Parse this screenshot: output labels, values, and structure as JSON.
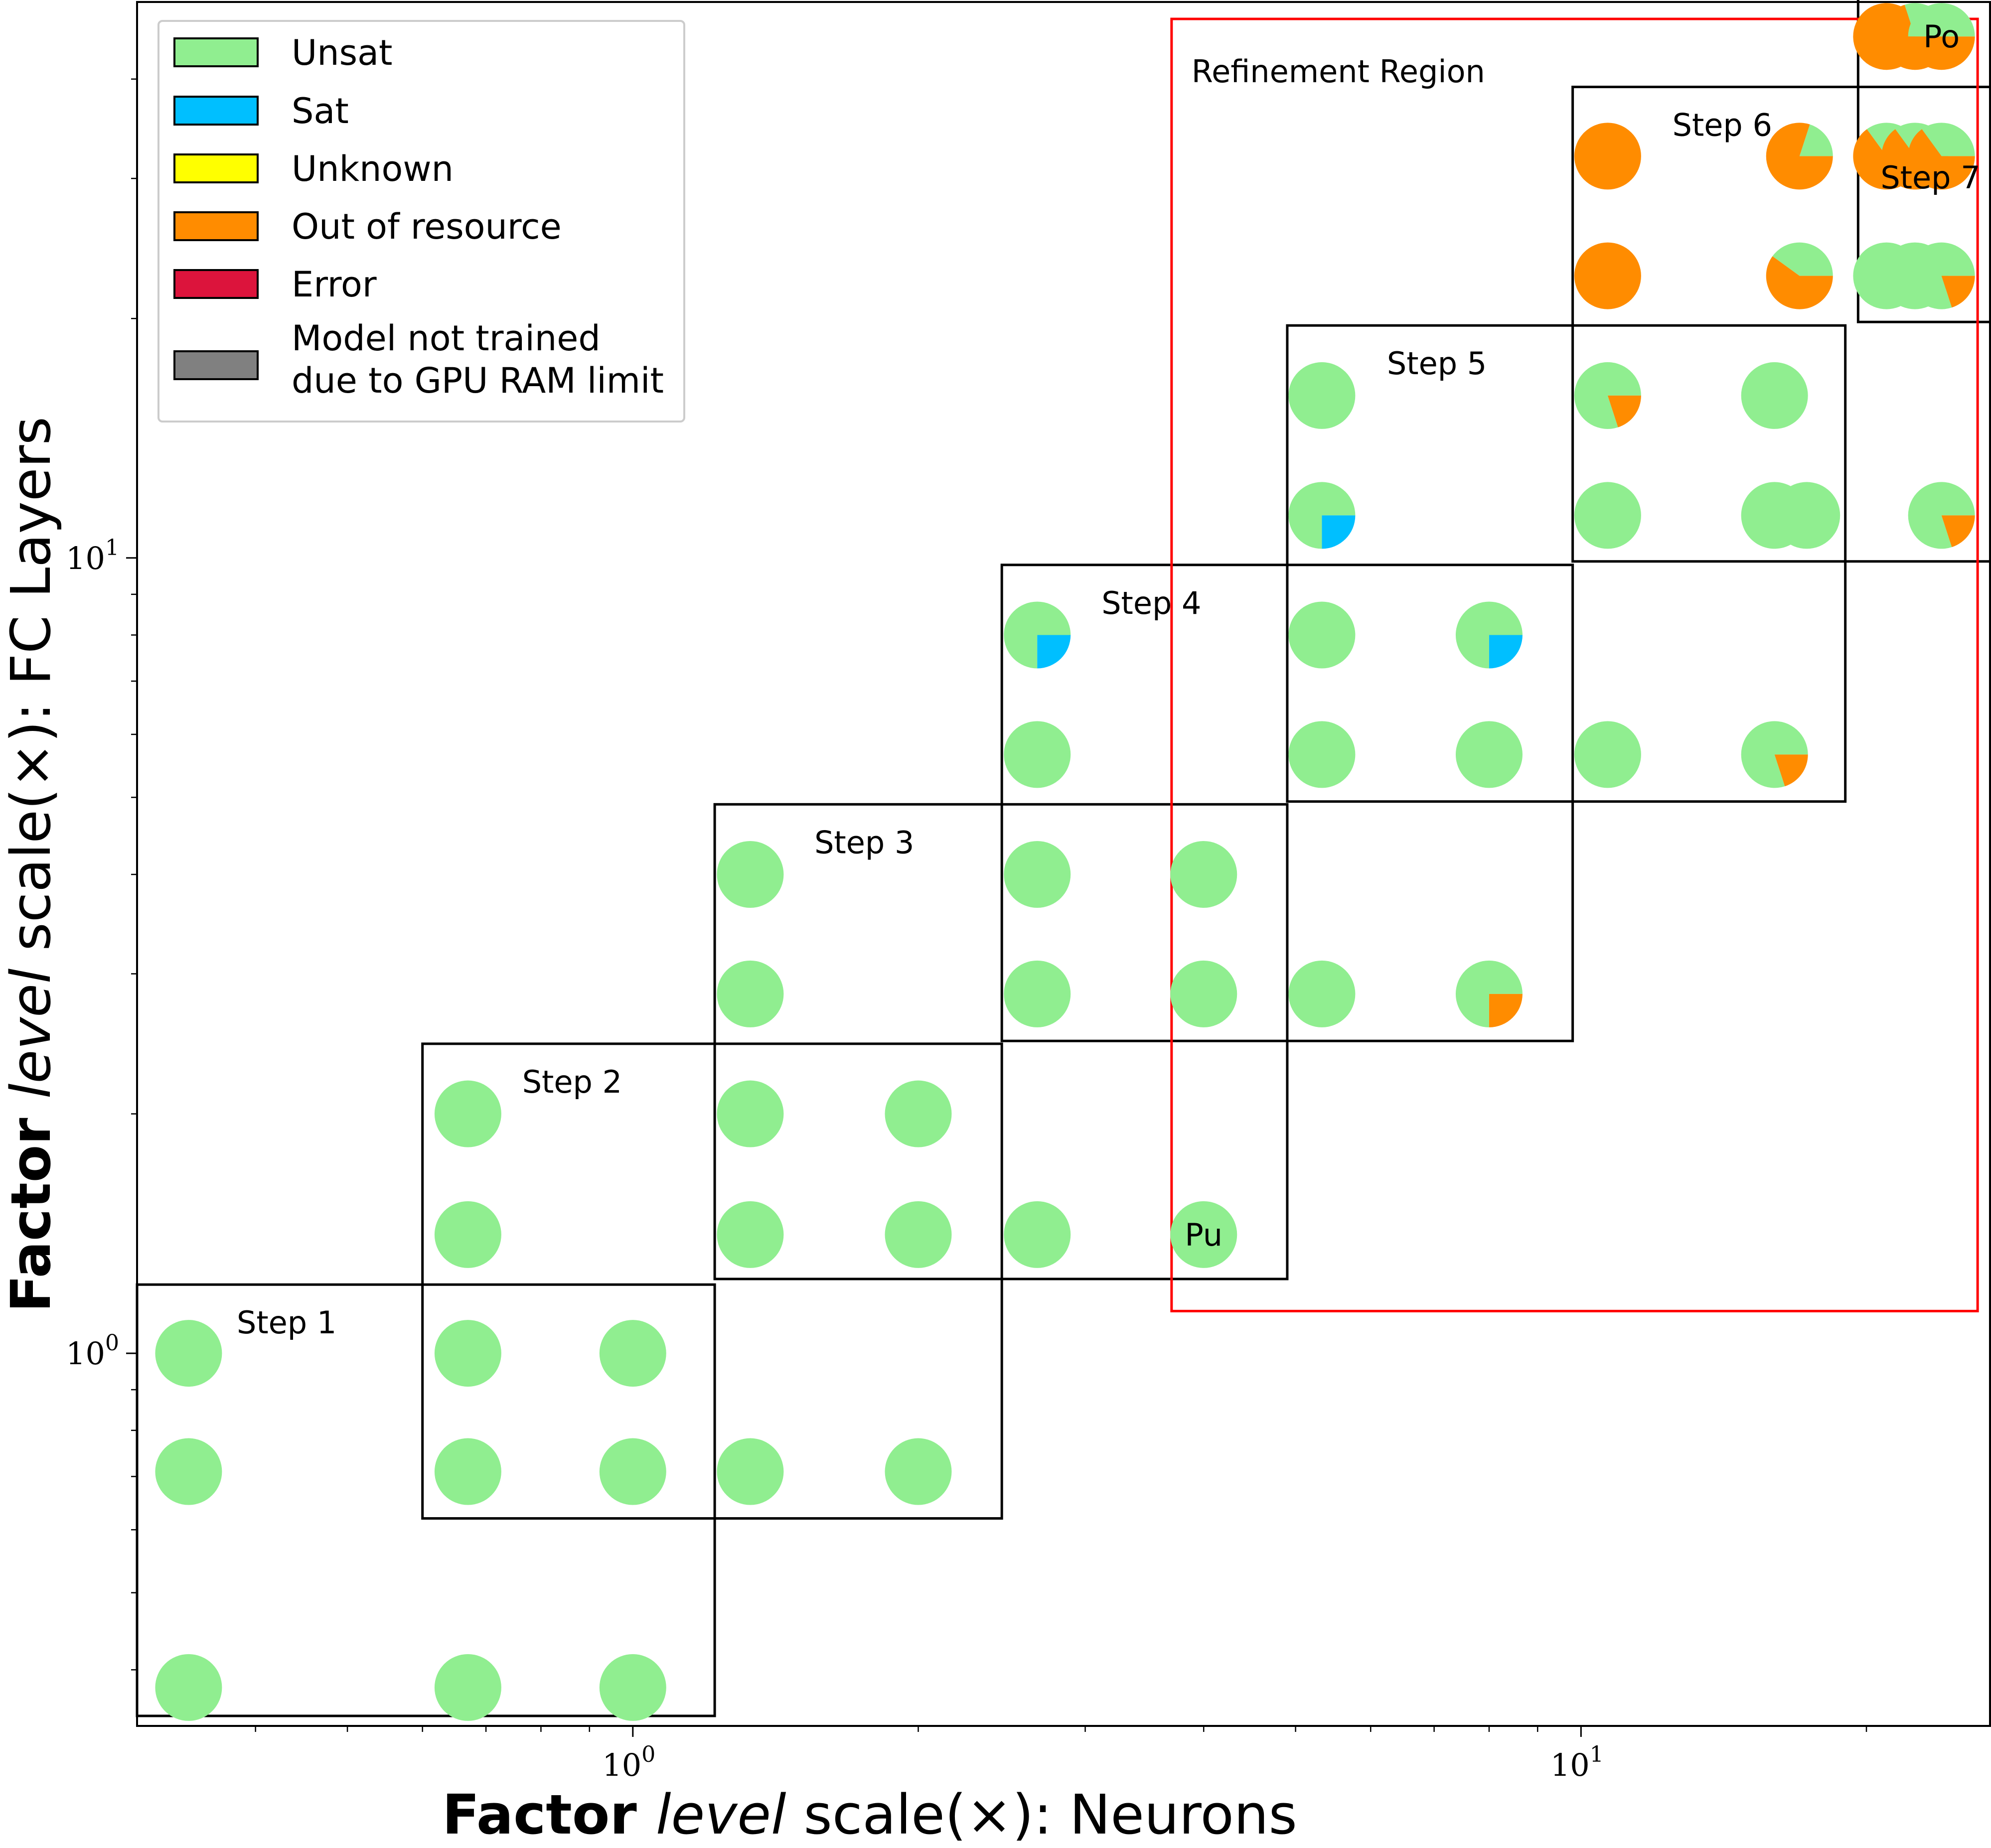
{
  "chart_data": {
    "type": "scatter",
    "marker": "pie",
    "xlabel": {
      "bold": "Factor",
      "italic": "level",
      "rest": "scale(×): Neurons"
    },
    "ylabel": {
      "bold": "Factor",
      "italic": "level",
      "rest": "scale(×): FC Layers"
    },
    "x_scale": "log",
    "y_scale": "log",
    "xlim": [
      0.3,
      27
    ],
    "ylim": [
      0.34,
      50
    ],
    "x_ticks": [
      {
        "value": 1,
        "base": "10",
        "exp": "0"
      },
      {
        "value": 10,
        "base": "10",
        "exp": "1"
      }
    ],
    "y_ticks": [
      {
        "value": 1,
        "base": "10",
        "exp": "0"
      },
      {
        "value": 10,
        "base": "10",
        "exp": "1"
      }
    ],
    "grid": false,
    "legend": {
      "placement": "top-left",
      "entries": [
        {
          "label": [
            "Unsat"
          ],
          "color": "#90EE90"
        },
        {
          "label": [
            "Sat"
          ],
          "color": "#00BFFF"
        },
        {
          "label": [
            "Unknown"
          ],
          "color": "#FFFF00"
        },
        {
          "label": [
            "Out of resource"
          ],
          "color": "#FF8C00"
        },
        {
          "label": [
            "Error"
          ],
          "color": "#DC143C"
        },
        {
          "label": [
            "Model not trained",
            "due to GPU RAM limit"
          ],
          "color": "#808080"
        }
      ]
    },
    "categories": [
      "Unsat",
      "Sat",
      "Unknown",
      "Out of resource",
      "Error",
      "Model not trained"
    ],
    "colors": {
      "Unsat": "#90EE90",
      "Sat": "#00BFFF",
      "Unknown": "#FFFF00",
      "Out of resource": "#FF8C00",
      "Error": "#DC143C",
      "Model not trained": "#808080",
      "refinement": "#FF0000",
      "box": "#000000"
    },
    "points": [
      {
        "x": 0.34,
        "y": 1.0,
        "unsat": 1
      },
      {
        "x": 0.34,
        "y": 0.71,
        "unsat": 1
      },
      {
        "x": 0.34,
        "y": 0.38,
        "unsat": 1
      },
      {
        "x": 0.67,
        "y": 0.38,
        "unsat": 1
      },
      {
        "x": 1.0,
        "y": 0.38,
        "unsat": 1
      },
      {
        "x": 0.67,
        "y": 1.0,
        "unsat": 1
      },
      {
        "x": 1.0,
        "y": 1.0,
        "unsat": 1
      },
      {
        "x": 0.67,
        "y": 0.71,
        "unsat": 1
      },
      {
        "x": 1.0,
        "y": 0.71,
        "unsat": 1
      },
      {
        "x": 1.33,
        "y": 0.71,
        "unsat": 1
      },
      {
        "x": 2.0,
        "y": 0.71,
        "unsat": 1
      },
      {
        "x": 0.67,
        "y": 2.0,
        "unsat": 1
      },
      {
        "x": 0.67,
        "y": 1.41,
        "unsat": 1
      },
      {
        "x": 1.33,
        "y": 2.0,
        "unsat": 1
      },
      {
        "x": 2.0,
        "y": 2.0,
        "unsat": 1
      },
      {
        "x": 1.33,
        "y": 1.41,
        "unsat": 1
      },
      {
        "x": 2.0,
        "y": 1.41,
        "unsat": 1
      },
      {
        "x": 2.67,
        "y": 1.41,
        "unsat": 1
      },
      {
        "x": 4.0,
        "y": 1.41,
        "unsat": 1,
        "label": "Pu"
      },
      {
        "x": 1.33,
        "y": 4.0,
        "unsat": 1
      },
      {
        "x": 1.33,
        "y": 2.83,
        "unsat": 1
      },
      {
        "x": 2.67,
        "y": 4.0,
        "unsat": 1
      },
      {
        "x": 4.0,
        "y": 4.0,
        "unsat": 1
      },
      {
        "x": 2.67,
        "y": 2.83,
        "unsat": 1
      },
      {
        "x": 4.0,
        "y": 2.83,
        "unsat": 1
      },
      {
        "x": 5.33,
        "y": 2.83,
        "unsat": 1
      },
      {
        "x": 8.0,
        "y": 2.83,
        "unsat": 0.75,
        "out_of_resource": 0.25
      },
      {
        "x": 2.67,
        "y": 8.0,
        "unsat": 0.75,
        "sat": 0.25
      },
      {
        "x": 2.67,
        "y": 5.66,
        "unsat": 1
      },
      {
        "x": 5.33,
        "y": 8.0,
        "unsat": 1
      },
      {
        "x": 8.0,
        "y": 8.0,
        "unsat": 0.75,
        "sat": 0.25
      },
      {
        "x": 5.33,
        "y": 5.66,
        "unsat": 1
      },
      {
        "x": 8.0,
        "y": 5.66,
        "unsat": 1
      },
      {
        "x": 10.67,
        "y": 5.66,
        "unsat": 1
      },
      {
        "x": 16.0,
        "y": 5.66,
        "unsat": 0.8,
        "out_of_resource": 0.2
      },
      {
        "x": 5.33,
        "y": 16.0,
        "unsat": 1
      },
      {
        "x": 5.33,
        "y": 11.31,
        "unsat": 0.75,
        "sat": 0.25
      },
      {
        "x": 10.67,
        "y": 16.0,
        "unsat": 0.8,
        "out_of_resource": 0.2
      },
      {
        "x": 16.0,
        "y": 16.0,
        "unsat": 1
      },
      {
        "x": 10.67,
        "y": 11.31,
        "unsat": 1
      },
      {
        "x": 16.0,
        "y": 11.31,
        "unsat": 0.98,
        "sat": 0.02
      },
      {
        "x": 17.3,
        "y": 11.31,
        "unsat": 1
      },
      {
        "x": 24.0,
        "y": 11.31,
        "unsat": 0.8,
        "out_of_resource": 0.2
      },
      {
        "x": 10.67,
        "y": 32.0,
        "out_of_resource": 1
      },
      {
        "x": 10.67,
        "y": 22.63,
        "out_of_resource": 1
      },
      {
        "x": 17.0,
        "y": 32.0,
        "unsat": 0.2,
        "out_of_resource": 0.8
      },
      {
        "x": 17.0,
        "y": 22.63,
        "unsat": 0.4,
        "out_of_resource": 0.6
      },
      {
        "x": 21.0,
        "y": 32.0,
        "unsat": 0.35,
        "out_of_resource": 0.65
      },
      {
        "x": 22.5,
        "y": 32.0,
        "unsat": 0.35,
        "out_of_resource": 0.65
      },
      {
        "x": 24.0,
        "y": 32.0,
        "unsat": 0.35,
        "out_of_resource": 0.65
      },
      {
        "x": 21.0,
        "y": 22.63,
        "unsat": 1
      },
      {
        "x": 22.5,
        "y": 22.63,
        "unsat": 1
      },
      {
        "x": 24.0,
        "y": 22.63,
        "unsat": 0.8,
        "out_of_resource": 0.2
      },
      {
        "x": 21.0,
        "y": 45.25,
        "unsat": 0.15,
        "out_of_resource": 0.85
      },
      {
        "x": 22.5,
        "y": 45.25,
        "unsat": 0.3,
        "out_of_resource": 0.7
      },
      {
        "x": 24.0,
        "y": 45.25,
        "unsat": 0.5,
        "out_of_resource": 0.5,
        "label": "Po"
      }
    ],
    "regions": [
      {
        "label": "Step 1",
        "x": [
          0.3,
          1.22
        ],
        "y": [
          0.35,
          1.22
        ]
      },
      {
        "label": "Step 2",
        "x": [
          0.6,
          2.45
        ],
        "y": [
          0.62,
          2.45
        ]
      },
      {
        "label": "Step 3",
        "x": [
          1.22,
          4.9
        ],
        "y": [
          1.24,
          4.9
        ]
      },
      {
        "label": "Step 4",
        "x": [
          2.45,
          9.8
        ],
        "y": [
          2.47,
          9.8
        ]
      },
      {
        "label": "Step 5",
        "x": [
          4.9,
          19.0
        ],
        "y": [
          4.94,
          19.6
        ]
      },
      {
        "label": "Step 6",
        "x": [
          9.8,
          27.6
        ],
        "y": [
          9.9,
          39.1
        ]
      },
      {
        "label": "Step 7",
        "x": [
          19.6,
          27.4
        ],
        "y": [
          19.8,
          55.0
        ]
      }
    ],
    "refinement_region": {
      "label": "Refinement Region",
      "x": [
        3.7,
        26.2
      ],
      "y": [
        1.13,
        58.0
      ]
    }
  }
}
